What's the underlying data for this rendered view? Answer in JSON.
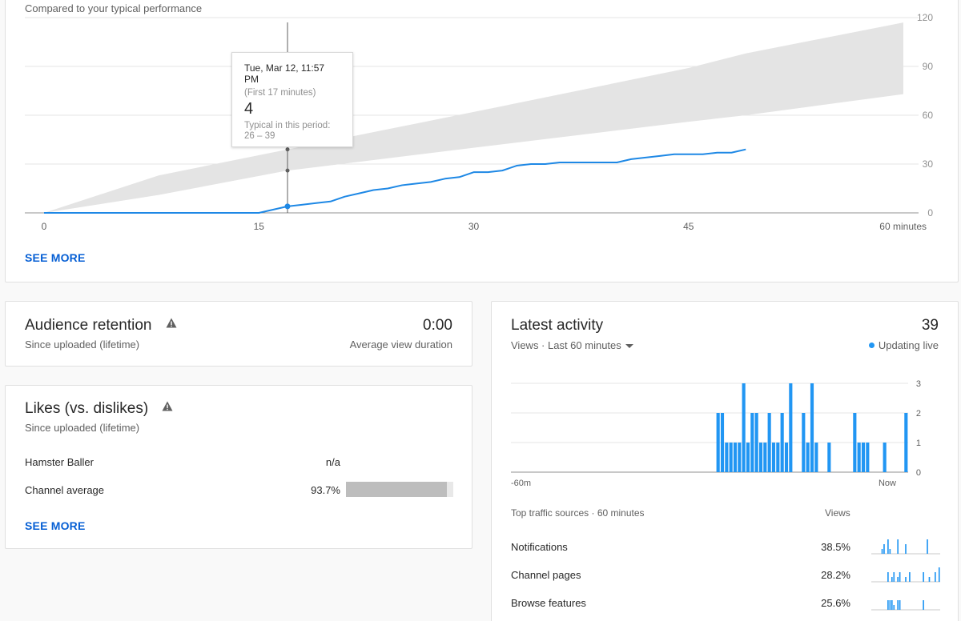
{
  "performance": {
    "subtitle": "Compared to your typical performance",
    "see_more": "SEE MORE",
    "chart_data": {
      "type": "line",
      "xlabel": "minutes",
      "x_ticks": [
        "0",
        "15",
        "30",
        "45",
        "60 minutes"
      ],
      "y_ticks": [
        "0",
        "30",
        "60",
        "90",
        "120"
      ],
      "xlim": [
        0,
        60
      ],
      "ylim": [
        0,
        120
      ],
      "grid": true,
      "series": [
        {
          "color": "#1e88e5",
          "x": [
            0,
            15,
            17,
            18,
            19,
            20,
            21,
            22,
            23,
            24,
            25,
            26,
            27,
            28,
            29,
            30,
            31,
            32,
            33,
            34,
            35,
            36,
            37,
            38,
            39,
            40,
            41,
            42,
            43,
            44,
            45,
            46,
            47,
            48,
            49
          ],
          "y": [
            0,
            0,
            4,
            5,
            6,
            7,
            10,
            12,
            14,
            15,
            17,
            18,
            19,
            21,
            22,
            25,
            25,
            26,
            29,
            30,
            30,
            31,
            31,
            31,
            31,
            31,
            33,
            34,
            35,
            36,
            36,
            36,
            37,
            37,
            39
          ]
        }
      ],
      "typical_band": {
        "color": "#e4e4e4",
        "x": [
          0,
          8,
          17,
          30,
          45,
          49,
          60
        ],
        "low": [
          0,
          11,
          26,
          40,
          56,
          60,
          73
        ],
        "high": [
          0,
          23,
          39,
          62,
          89,
          98,
          117
        ]
      },
      "tooltip": {
        "x": 17,
        "date": "Tue, Mar 12, 11:57 PM",
        "period": "(First 17 minutes)",
        "value": "4",
        "typical_label": "Typical in this period:",
        "typical_range": "26 – 39"
      }
    }
  },
  "retention": {
    "title": "Audience retention",
    "subtitle": "Since uploaded (lifetime)",
    "value": "0:00",
    "value_label": "Average view duration"
  },
  "likes": {
    "title": "Likes (vs. dislikes)",
    "subtitle": "Since uploaded (lifetime)",
    "rows": [
      {
        "label": "Hamster Baller",
        "value": "n/a"
      },
      {
        "label": "Channel average",
        "value": "93.7%",
        "fraction": 0.937
      }
    ],
    "see_more": "SEE MORE"
  },
  "activity": {
    "title": "Latest activity",
    "total": "39",
    "filter": "Views · Last 60 minutes",
    "live": "Updating live",
    "chart_data": {
      "type": "bar",
      "x_labels": [
        "-60m",
        "Now"
      ],
      "y_ticks": [
        "0",
        "1",
        "2",
        "3"
      ],
      "ylim": [
        0,
        3
      ],
      "color": "#2196f3",
      "values": [
        0,
        0,
        0,
        0,
        0,
        0,
        0,
        0,
        0,
        0,
        0,
        0,
        0,
        0,
        0,
        0,
        0,
        0,
        0,
        0,
        0,
        0,
        0,
        0,
        0,
        0,
        0,
        0,
        0,
        0,
        0,
        0,
        0,
        0,
        0,
        0,
        0,
        0,
        0,
        0,
        0,
        0,
        0,
        0,
        0,
        0,
        0,
        0,
        2,
        2,
        1,
        1,
        1,
        1,
        3,
        1,
        2,
        2,
        1,
        1,
        2,
        1,
        1,
        2,
        1,
        3,
        0,
        0,
        2,
        1,
        3,
        1,
        0,
        0,
        1,
        0,
        0,
        0,
        0,
        0,
        2,
        1,
        1,
        1,
        0,
        0,
        0,
        1,
        0,
        0,
        0,
        0,
        2
      ]
    },
    "sources_header": "Top traffic sources · 60 minutes",
    "views_header": "Views",
    "sources": [
      {
        "label": "Notifications",
        "pct": "38.5%",
        "spark": [
          0,
          0,
          0,
          0,
          0,
          1,
          2,
          0,
          3,
          1,
          0,
          0,
          0,
          3,
          0,
          0,
          0,
          2,
          0,
          0,
          0,
          0,
          0,
          0,
          0,
          0,
          0,
          0,
          3,
          0,
          0,
          0,
          0,
          0,
          0
        ]
      },
      {
        "label": "Channel pages",
        "pct": "28.2%",
        "spark": [
          0,
          0,
          0,
          0,
          0,
          0,
          0,
          0,
          2,
          0,
          1,
          2,
          0,
          1,
          2,
          0,
          0,
          1,
          0,
          2,
          0,
          0,
          0,
          0,
          0,
          0,
          2,
          0,
          0,
          1,
          0,
          0,
          2,
          0,
          3
        ]
      },
      {
        "label": "Browse features",
        "pct": "25.6%",
        "spark": [
          0,
          0,
          0,
          0,
          0,
          0,
          0,
          0,
          2,
          2,
          2,
          1,
          0,
          2,
          2,
          0,
          0,
          0,
          0,
          0,
          0,
          0,
          0,
          0,
          0,
          0,
          2,
          0,
          0,
          0,
          0,
          0,
          0,
          0,
          0
        ]
      }
    ]
  }
}
